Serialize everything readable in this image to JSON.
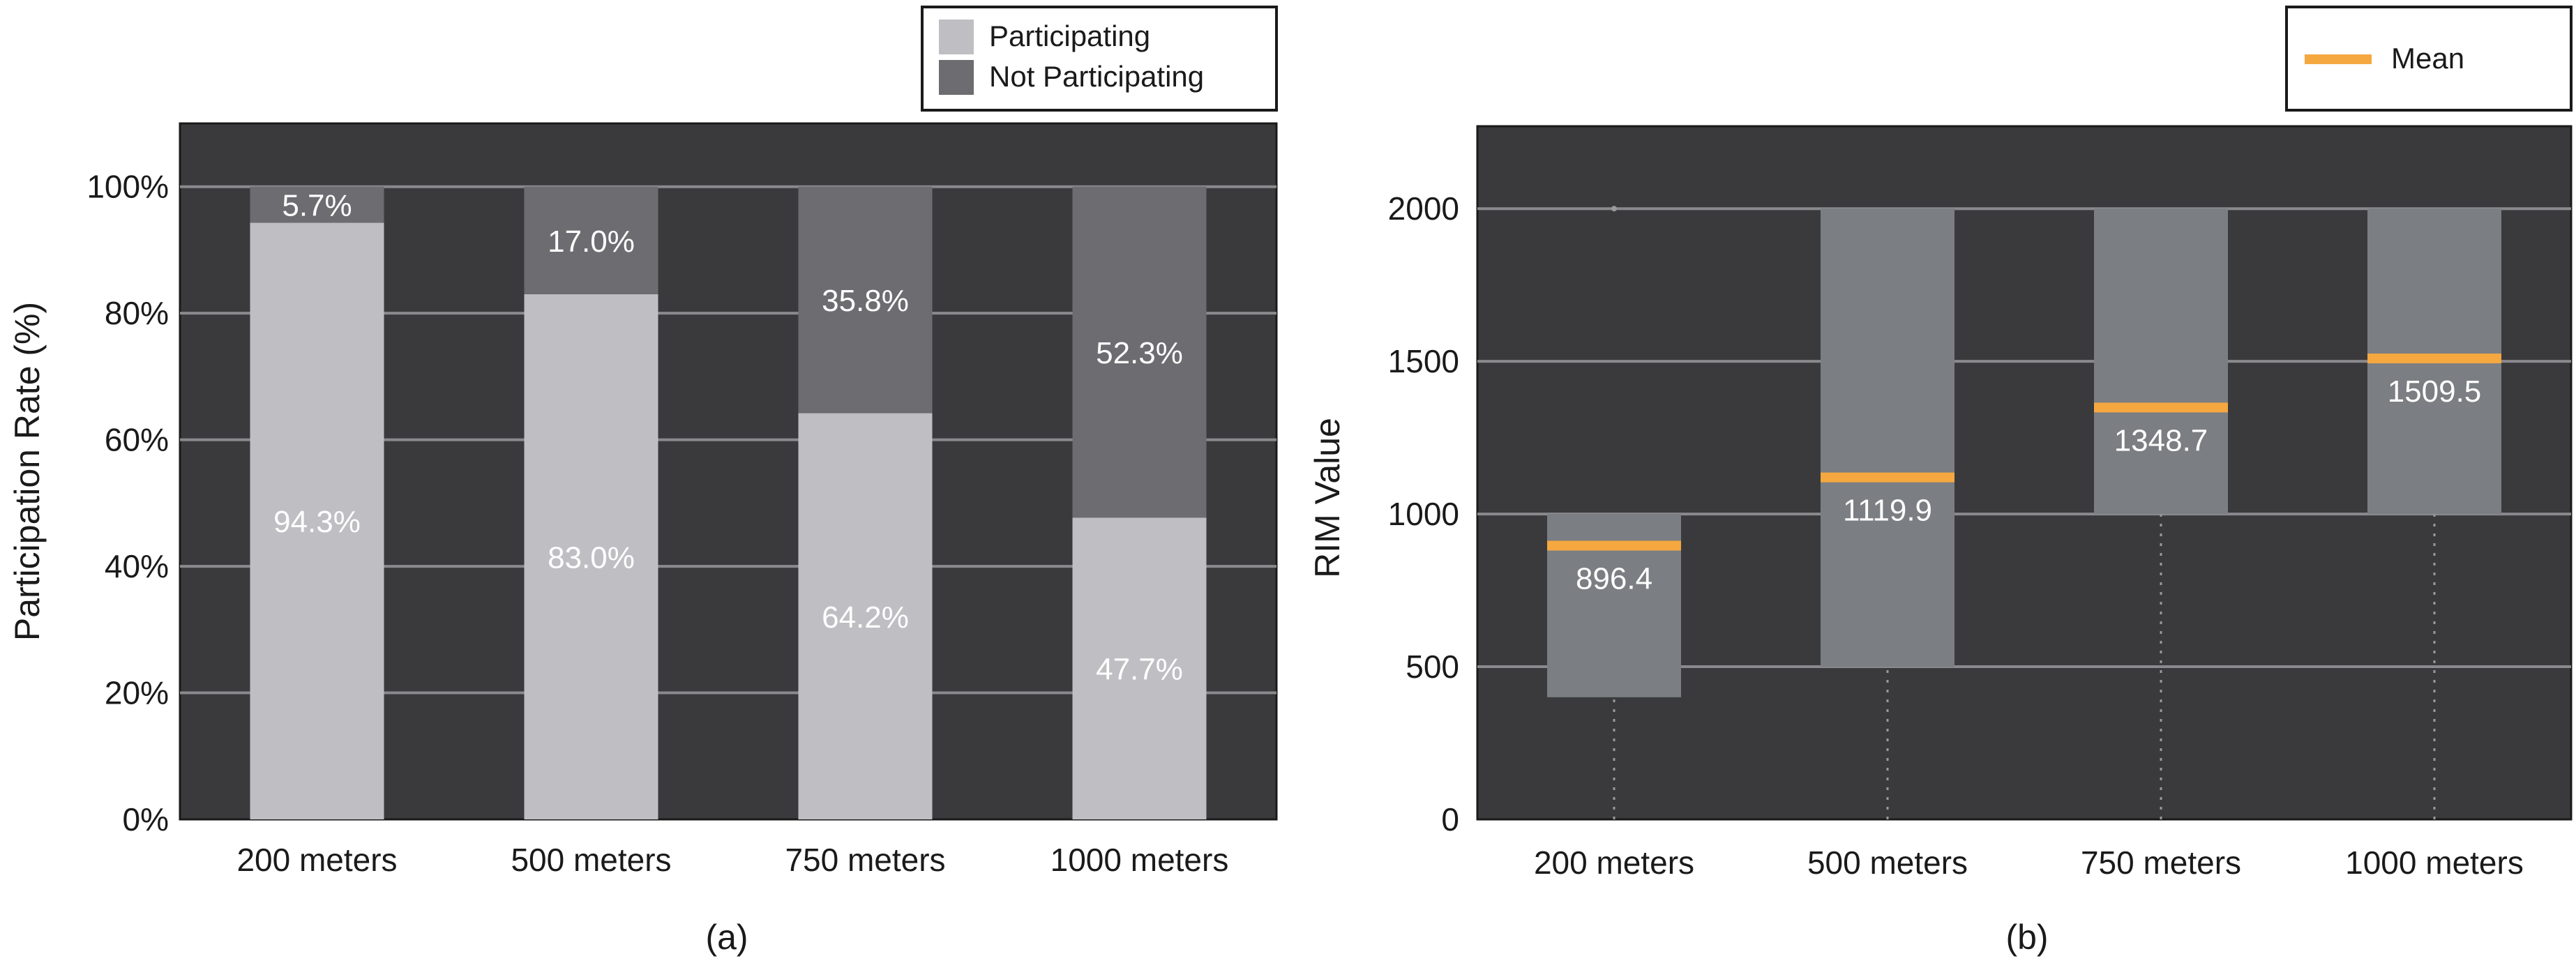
{
  "colors": {
    "plot_bg": "#3a3a3c",
    "grid": "#8a8a8e",
    "participating": "#bfbfc3",
    "not_participating": "#6d6d71",
    "range_box": "#7b7e82",
    "mean": "#f5a840",
    "whisker": "#9a9a9a"
  },
  "chart_data": [
    {
      "panel_label": "(a)",
      "type": "bar",
      "stacked": true,
      "categories": [
        "200 meters",
        "500 meters",
        "750 meters",
        "1000 meters"
      ],
      "series": [
        {
          "name": "Participating",
          "values": [
            94.3,
            83.0,
            64.2,
            47.7
          ],
          "labels": [
            "94.3%",
            "83.0%",
            "64.2%",
            "47.7%"
          ]
        },
        {
          "name": "Not Participating",
          "values": [
            5.7,
            17.0,
            35.8,
            52.3
          ],
          "labels": [
            "5.7%",
            "17.0%",
            "35.8%",
            "52.3%"
          ]
        }
      ],
      "ylabel": "Participation Rate (%)",
      "xlabel": "",
      "ylim": [
        0,
        110
      ],
      "yticks": [
        0,
        20,
        40,
        60,
        80,
        100
      ],
      "ytick_labels": [
        "0%",
        "20%",
        "40%",
        "60%",
        "80%",
        "100%"
      ],
      "grid": true,
      "legend": {
        "placement": "top-right",
        "entries": [
          "Participating",
          "Not Participating"
        ]
      }
    },
    {
      "panel_label": "(b)",
      "type": "box",
      "categories": [
        "200 meters",
        "500 meters",
        "750 meters",
        "1000 meters"
      ],
      "box_low": [
        400,
        500,
        1000,
        1000
      ],
      "box_high": [
        1000,
        2000,
        2000,
        2000
      ],
      "whisker_low": [
        0,
        0,
        0,
        0
      ],
      "means": [
        896.4,
        1119.9,
        1348.7,
        1509.5
      ],
      "mean_labels": [
        "896.4",
        "1119.9",
        "1348.7",
        "1509.5"
      ],
      "outliers": [
        {
          "category": "200 meters",
          "value": 2000
        }
      ],
      "ylabel": "RIM Value",
      "xlabel": "",
      "ylim": [
        0,
        2270
      ],
      "yticks": [
        0,
        500,
        1000,
        1500,
        2000
      ],
      "ytick_labels": [
        "0",
        "500",
        "1000",
        "1500",
        "2000"
      ],
      "grid": true,
      "legend": {
        "placement": "top-right",
        "entries": [
          "Mean"
        ]
      }
    }
  ]
}
